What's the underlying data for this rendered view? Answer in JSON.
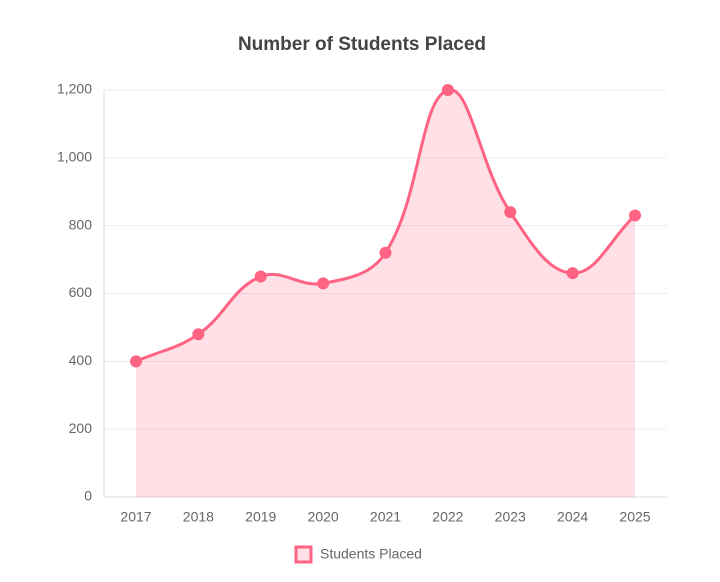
{
  "chart_data": {
    "type": "line",
    "title": "Number of Students Placed",
    "categories": [
      "2017",
      "2018",
      "2019",
      "2020",
      "2021",
      "2022",
      "2023",
      "2024",
      "2025"
    ],
    "series": [
      {
        "name": "Students Placed",
        "color": "#ff6384",
        "fill": "rgba(255,99,132,0.2)",
        "values": [
          400,
          480,
          650,
          630,
          720,
          1200,
          840,
          660,
          830
        ]
      }
    ],
    "ylim": [
      0,
      1200
    ],
    "yticks": [
      0,
      200,
      400,
      600,
      800,
      {
        "value": 1000,
        "label": "1,000"
      },
      {
        "value": 1200,
        "label": "1,200"
      }
    ],
    "grid": true,
    "legend": "bottom"
  }
}
